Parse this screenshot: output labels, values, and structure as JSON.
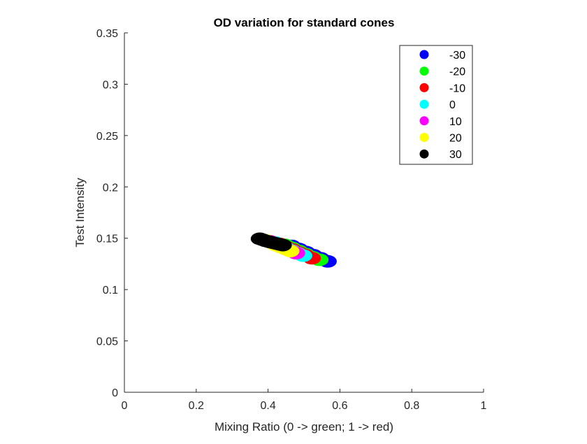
{
  "chart_data": {
    "type": "scatter",
    "title": "OD variation for standard cones",
    "xlabel": "Mixing Ratio (0 -> green; 1 -> red)",
    "ylabel": "Test Intensity",
    "xlim": [
      0,
      1
    ],
    "ylim": [
      0,
      0.35
    ],
    "xticks": [
      0,
      0.2,
      0.4,
      0.6,
      0.8,
      1
    ],
    "xtick_labels": [
      "0",
      "0.2",
      "0.4",
      "0.6",
      "0.8",
      "1"
    ],
    "yticks": [
      0,
      0.05,
      0.1,
      0.15,
      0.2,
      0.25,
      0.3,
      0.35
    ],
    "ytick_labels": [
      "0",
      "0.05",
      "0.1",
      "0.15",
      "0.2",
      "0.25",
      "0.3",
      "0.35"
    ],
    "grid": false,
    "legend_position": "top-right",
    "series": [
      {
        "name": "-30",
        "color": "#0000ff",
        "x": [
          0.466,
          0.486,
          0.506,
          0.526,
          0.546,
          0.566
        ],
        "y": [
          0.1425,
          0.1395,
          0.1365,
          0.1335,
          0.1305,
          0.1275
        ]
      },
      {
        "name": "-20",
        "color": "#00ff00",
        "x": [
          0.448,
          0.467,
          0.486,
          0.505,
          0.524,
          0.543
        ],
        "y": [
          0.1435,
          0.1405,
          0.1375,
          0.1345,
          0.1315,
          0.129
        ]
      },
      {
        "name": "-10",
        "color": "#ff0000",
        "x": [
          0.432,
          0.45,
          0.468,
          0.486,
          0.504,
          0.522
        ],
        "y": [
          0.1445,
          0.1415,
          0.139,
          0.136,
          0.1335,
          0.1305
        ]
      },
      {
        "name": "0",
        "color": "#00ffff",
        "x": [
          0.418,
          0.434,
          0.45,
          0.466,
          0.482,
          0.498
        ],
        "y": [
          0.146,
          0.143,
          0.1405,
          0.138,
          0.1355,
          0.133
        ]
      },
      {
        "name": "10",
        "color": "#ff00ff",
        "x": [
          0.405,
          0.42,
          0.435,
          0.45,
          0.465,
          0.478
        ],
        "y": [
          0.147,
          0.1445,
          0.142,
          0.1395,
          0.1375,
          0.1355
        ]
      },
      {
        "name": "20",
        "color": "#ffff00",
        "x": [
          0.393,
          0.407,
          0.421,
          0.435,
          0.449,
          0.462
        ],
        "y": [
          0.148,
          0.146,
          0.1435,
          0.1415,
          0.1395,
          0.1375
        ]
      },
      {
        "name": "30",
        "color": "#000000",
        "x": [
          0.377,
          0.385,
          0.393,
          0.401,
          0.409,
          0.417,
          0.425,
          0.433,
          0.441
        ],
        "y": [
          0.1495,
          0.1485,
          0.1475,
          0.1468,
          0.146,
          0.1453,
          0.1447,
          0.144,
          0.1433
        ]
      }
    ]
  }
}
